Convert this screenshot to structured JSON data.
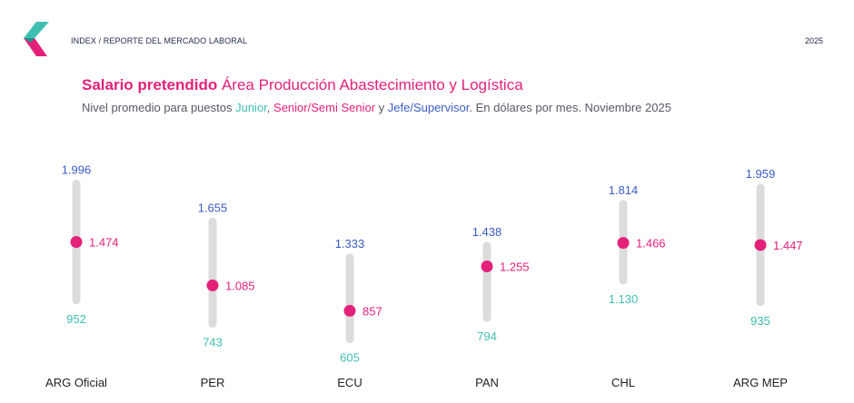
{
  "header": {
    "breadcrumb": "INDEX / REPORTE DEL MERCADO LABORAL",
    "year": "2025"
  },
  "title": {
    "strong": "Salario pretendido",
    "rest": " Área Producción Abastecimiento y Logística"
  },
  "subtitle": {
    "p1": "Nivel promedio para puestos ",
    "junior": "Junior",
    "sep1": ", ",
    "senior": "Senior/Semi Senior",
    "sep2": " y ",
    "jefe": "Jefe/Supervisor",
    "p2": ". En dólares por mes. Noviembre 2025"
  },
  "colors": {
    "junior": "#3fbfb0",
    "senior": "#e4217a",
    "jefe": "#3b5bc8",
    "bar": "#dcdcdc"
  },
  "chart_data": {
    "type": "range-dot",
    "categories": [
      "ARG Oficial",
      "PER",
      "ECU",
      "PAN",
      "CHL",
      "ARG MEP"
    ],
    "series": [
      {
        "name": "Junior",
        "values": [
          952,
          743,
          605,
          794,
          1130,
          935
        ],
        "labels": [
          "952",
          "743",
          "605",
          "794",
          "1.130",
          "935"
        ]
      },
      {
        "name": "Senior/Semi Senior",
        "values": [
          1474,
          1085,
          857,
          1255,
          1466,
          1447
        ],
        "labels": [
          "1.474",
          "1.085",
          "857",
          "1.255",
          "1.466",
          "1.447"
        ]
      },
      {
        "name": "Jefe/Supervisor",
        "values": [
          1996,
          1655,
          1333,
          1438,
          1814,
          1959
        ],
        "labels": [
          "1.996",
          "1.655",
          "1.333",
          "1.438",
          "1.814",
          "1.959"
        ]
      }
    ],
    "ylim": [
      550,
      2050
    ]
  }
}
